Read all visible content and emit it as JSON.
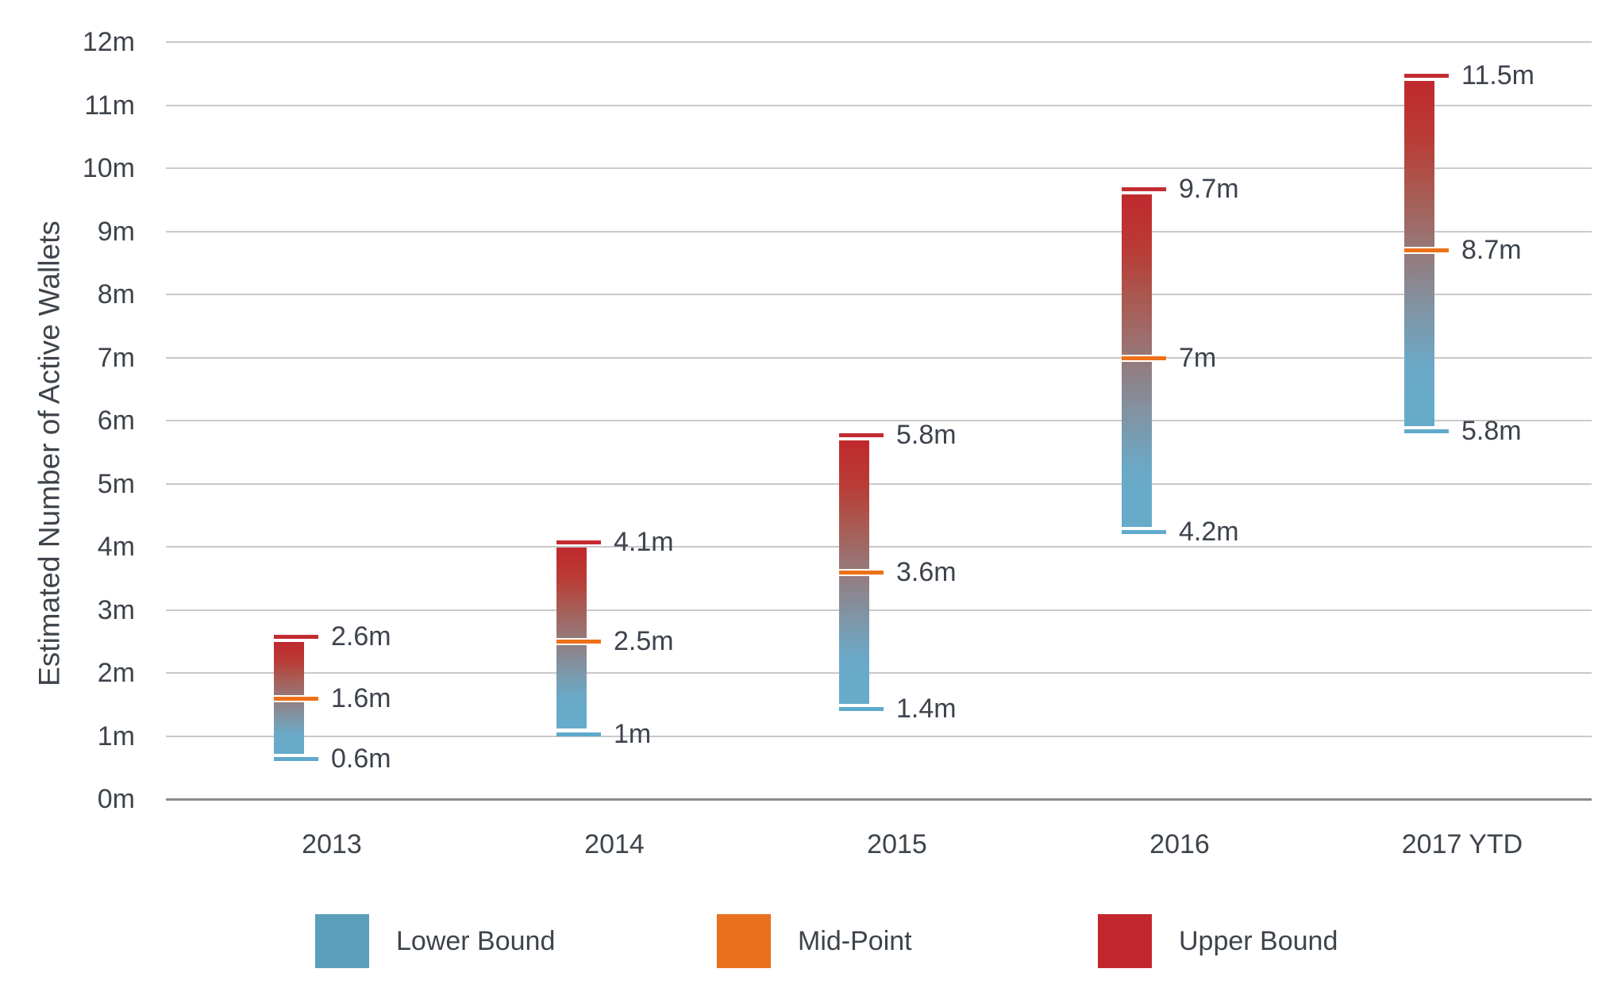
{
  "chart_data": {
    "type": "bar",
    "subtype": "floating-range-bars",
    "title": "",
    "xlabel": "",
    "ylabel": "Estimated Number of Active Wallets",
    "categories": [
      "2013",
      "2014",
      "2015",
      "2016",
      "2017 YTD"
    ],
    "series": [
      {
        "name": "Lower Bound",
        "values": [
          0.6,
          1,
          1.4,
          4.2,
          5.8
        ],
        "labels": [
          "0.6m",
          "1m",
          "1.4m",
          "4.2m",
          "5.8m"
        ],
        "tick_color": "#5fa9cc",
        "legend_color": "#5b9fbd"
      },
      {
        "name": "Mid-Point",
        "values": [
          1.6,
          2.5,
          3.6,
          7,
          8.7
        ],
        "labels": [
          "1.6m",
          "2.5m",
          "3.6m",
          "7m",
          "8.7m"
        ],
        "tick_color": "#ee7018",
        "legend_color": "#e8701e"
      },
      {
        "name": "Upper Bound",
        "values": [
          2.6,
          4.1,
          5.8,
          9.7,
          11.5
        ],
        "labels": [
          "2.6m",
          "4.1m",
          "5.8m",
          "9.7m",
          "11.5m"
        ],
        "tick_color": "#c42b31",
        "legend_color": "#c1272d"
      }
    ],
    "ylim": [
      0,
      12
    ],
    "y_tick_labels": [
      "0m",
      "1m",
      "2m",
      "3m",
      "4m",
      "5m",
      "6m",
      "7m",
      "8m",
      "9m",
      "10m",
      "11m",
      "12m"
    ],
    "grid": "horizontal-only",
    "legend_position": "bottom",
    "colors": {
      "gridline": "#c9c9c9",
      "axis_line": "#8a8a8a",
      "text": "#3e444b",
      "bar_gradient_stops": [
        "#c0292d",
        "#b93c36",
        "#a85c54",
        "#957a7c",
        "#7f95a6",
        "#6aa9c8",
        "#67abcb"
      ]
    }
  }
}
